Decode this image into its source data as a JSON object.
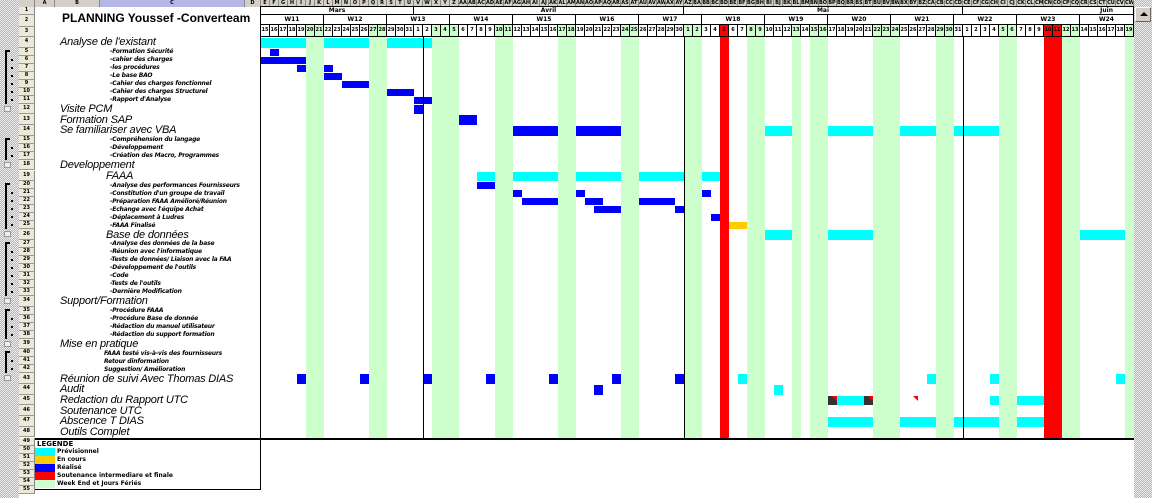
{
  "title": "PLANNING Youssef -Converteam",
  "column_letters": "A B C D E F G H I J K L M N O P Q R S T U V W X Y Z AA AB AC AD AE AF AG AH AI AJ AK AL AM AN AO AP AQ AR AS AT AU AV AW AX AY AZ BA BB BC BD BE BF BG BH BI BJ BK BL BM BN BO BP BQ BR BS BT BU BV BW BX BY BZ CA CB CC CD CE CF CG CH CI CJ CK CL CM CN CO CP CQ CR CS CT CU CV CW",
  "selected_column": "C",
  "timeline": {
    "months": [
      {
        "label": "Mars",
        "first": 15,
        "last": 31
      },
      {
        "label": "Avril",
        "first": 1,
        "last": 30
      },
      {
        "label": "Mai",
        "first": 1,
        "last": 31
      },
      {
        "label": "Juin",
        "first": 1,
        "last": 19
      }
    ],
    "weeks": [
      "W11",
      "W12",
      "W13",
      "W14",
      "W15",
      "W16",
      "W17",
      "W18",
      "W19",
      "W20",
      "W21",
      "W22",
      "W23",
      "W24"
    ],
    "non_working_days": [
      "20 Mars",
      "21 Mars",
      "27 Mars",
      "28 Mars",
      "3 Avril",
      "4 Avril",
      "5 Avril",
      "10 Avril",
      "11 Avril",
      "17 Avril",
      "18 Avril",
      "24 Avril",
      "25 Avril",
      "1 Mai",
      "2 Mai",
      "8 Mai",
      "9 Mai",
      "13 Mai",
      "15 Mai",
      "16 Mai",
      "22 Mai",
      "23 Mai",
      "24 Mai",
      "29 Mai",
      "30 Mai",
      "5 Juin",
      "6 Juin",
      "12 Juin",
      "13 Juin",
      "19 Juin"
    ],
    "defense_days": [
      "5 Mai",
      "10 Juin",
      "11 Juin"
    ]
  },
  "rows": [
    {
      "num": 4,
      "label": "Analyse de l'existant",
      "level": "h1"
    },
    {
      "num": 5,
      "label": "-Formation Sécurité",
      "level": "sub"
    },
    {
      "num": 6,
      "label": "-cahier des charges",
      "level": "sub"
    },
    {
      "num": 7,
      "label": "-les procédures",
      "level": "sub"
    },
    {
      "num": 8,
      "label": "-Le base BAO",
      "level": "sub"
    },
    {
      "num": 9,
      "label": "-Cahier des charges fonctionnel",
      "level": "sub"
    },
    {
      "num": 10,
      "label": "-Cahier des charges Structurel",
      "level": "sub"
    },
    {
      "num": 11,
      "label": "-Rapport d'Analyse",
      "level": "sub"
    },
    {
      "num": 12,
      "label": "Visite PCM",
      "level": "h1"
    },
    {
      "num": 13,
      "label": "Formation SAP",
      "level": "h1"
    },
    {
      "num": 14,
      "label": "Se familiariser avec VBA",
      "level": "h1"
    },
    {
      "num": 15,
      "label": "-Compréhension du langage",
      "level": "sub"
    },
    {
      "num": 16,
      "label": "-Développement",
      "level": "sub"
    },
    {
      "num": 17,
      "label": "-Création des Macro, Programmes",
      "level": "sub"
    },
    {
      "num": 18,
      "label": "Developpement",
      "level": "h1"
    },
    {
      "num": 19,
      "label": "FAAA",
      "level": "h2"
    },
    {
      "num": 20,
      "label": "-Analyse des performances Fournisseurs",
      "level": "sub"
    },
    {
      "num": 21,
      "label": "-Constitution d'un groupe de travail",
      "level": "sub"
    },
    {
      "num": 22,
      "label": "-Préparation FAAA Amélioré/Réunion",
      "level": "sub"
    },
    {
      "num": 23,
      "label": "-Echange avec l'équipe Achat",
      "level": "sub"
    },
    {
      "num": 24,
      "label": "-Déplacement à Ludres",
      "level": "sub"
    },
    {
      "num": 25,
      "label": "-FAAA Finalisé",
      "level": "sub"
    },
    {
      "num": 26,
      "label": "Base de données",
      "level": "h2"
    },
    {
      "num": 27,
      "label": "-Analyse des données de la base",
      "level": "sub"
    },
    {
      "num": 28,
      "label": "-Réunion avec l'informatique",
      "level": "sub"
    },
    {
      "num": 29,
      "label": "-Tests de données/ Liaison avec la FAA",
      "level": "sub"
    },
    {
      "num": 30,
      "label": "-Développement de l'outils",
      "level": "sub"
    },
    {
      "num": 31,
      "label": "-Code",
      "level": "sub"
    },
    {
      "num": 32,
      "label": "-Tests de l'outils",
      "level": "sub"
    },
    {
      "num": 33,
      "label": "-Dernière Modification",
      "level": "sub"
    },
    {
      "num": 34,
      "label": "Support/Formation",
      "level": "h1"
    },
    {
      "num": 35,
      "label": "-Procédure FAAA",
      "level": "sub"
    },
    {
      "num": 36,
      "label": "-Procédure Base de donnée",
      "level": "sub"
    },
    {
      "num": 37,
      "label": "-Rédaction du manuel utilisateur",
      "level": "sub"
    },
    {
      "num": 38,
      "label": "-Rédaction du support formation",
      "level": "sub"
    },
    {
      "num": 39,
      "label": "Mise en pratique",
      "level": "h1"
    },
    {
      "num": 40,
      "label": "FAAA testé vis-à-vis des fournisseurs",
      "level": "sub2"
    },
    {
      "num": 41,
      "label": "Retour dinformation",
      "level": "sub2"
    },
    {
      "num": 42,
      "label": "Suggestion/ Amélioration",
      "level": "sub2"
    },
    {
      "num": 43,
      "label": "Réunion de suivi Avec Thomas DIAS",
      "level": "h1"
    },
    {
      "num": 44,
      "label": "Audit",
      "level": "h1"
    },
    {
      "num": 45,
      "label": "Redaction du Rapport UTC",
      "level": "h1"
    },
    {
      "num": 46,
      "label": "Soutenance UTC",
      "level": "h1"
    },
    {
      "num": 47,
      "label": "Abscence T DIAS",
      "level": "h1"
    },
    {
      "num": 48,
      "label": "Outils Complet",
      "level": "h1"
    }
  ],
  "bars": [
    {
      "row": 4,
      "status": "planned",
      "from": "15 Mars",
      "to": "2 Avril"
    },
    {
      "row": 5,
      "status": "done",
      "from": "16 Mars",
      "to": "16 Mars"
    },
    {
      "row": 6,
      "status": "done",
      "from": "15 Mars",
      "to": "19 Mars"
    },
    {
      "row": 7,
      "status": "done",
      "from": "19 Mars",
      "to": "19 Mars"
    },
    {
      "row": 7,
      "status": "done",
      "from": "22 Mars",
      "to": "22 Mars"
    },
    {
      "row": 8,
      "status": "done",
      "from": "22 Mars",
      "to": "23 Mars"
    },
    {
      "row": 9,
      "status": "done",
      "from": "24 Mars",
      "to": "26 Mars"
    },
    {
      "row": 10,
      "status": "done",
      "from": "29 Mars",
      "to": "31 Mars"
    },
    {
      "row": 11,
      "status": "done",
      "from": "1 Avril",
      "to": "2 Avril"
    },
    {
      "row": 12,
      "status": "done",
      "from": "1 Avril",
      "to": "1 Avril"
    },
    {
      "row": 13,
      "status": "done",
      "from": "6 Avril",
      "to": "7 Avril"
    },
    {
      "row": 14,
      "status": "done",
      "from": "12 Avril",
      "to": "23 Avril"
    },
    {
      "row": 14,
      "status": "planned",
      "from": "10 Mai",
      "to": "12 Mai"
    },
    {
      "row": 14,
      "status": "planned",
      "from": "17 Mai",
      "to": "4 Juin"
    },
    {
      "row": 19,
      "status": "planned",
      "from": "8 Avril",
      "to": "4 Mai"
    },
    {
      "row": 20,
      "status": "done",
      "from": "8 Avril",
      "to": "9 Avril"
    },
    {
      "row": 21,
      "status": "done",
      "from": "12 Avril",
      "to": "12 Avril"
    },
    {
      "row": 21,
      "status": "done",
      "from": "19 Avril",
      "to": "19 Avril"
    },
    {
      "row": 21,
      "status": "done",
      "from": "3 Mai",
      "to": "3 Mai"
    },
    {
      "row": 22,
      "status": "done",
      "from": "13 Avril",
      "to": "16 Avril"
    },
    {
      "row": 22,
      "status": "done",
      "from": "20 Avril",
      "to": "21 Avril"
    },
    {
      "row": 22,
      "status": "done",
      "from": "26 Avril",
      "to": "29 Avril"
    },
    {
      "row": 23,
      "status": "done",
      "from": "21 Avril",
      "to": "23 Avril"
    },
    {
      "row": 23,
      "status": "done",
      "from": "30 Avril",
      "to": "30 Avril"
    },
    {
      "row": 24,
      "status": "done",
      "from": "4 Mai",
      "to": "4 Mai"
    },
    {
      "row": 25,
      "status": "in_progress",
      "from": "6 Mai",
      "to": "7 Mai"
    },
    {
      "row": 26,
      "status": "planned",
      "from": "10 Mai",
      "to": "12 Mai"
    },
    {
      "row": 26,
      "status": "planned",
      "from": "17 Mai",
      "to": "21 Mai"
    },
    {
      "row": 26,
      "status": "planned",
      "from": "14 Juin",
      "to": "18 Juin"
    },
    {
      "row": 43,
      "status": "done",
      "from": "19 Mars",
      "to": "19 Mars"
    },
    {
      "row": 43,
      "status": "done",
      "from": "26 Mars",
      "to": "26 Mars"
    },
    {
      "row": 43,
      "status": "done",
      "from": "2 Avril",
      "to": "2 Avril"
    },
    {
      "row": 43,
      "status": "done",
      "from": "9 Avril",
      "to": "9 Avril"
    },
    {
      "row": 43,
      "status": "done",
      "from": "16 Avril",
      "to": "16 Avril"
    },
    {
      "row": 43,
      "status": "done",
      "from": "23 Avril",
      "to": "23 Avril"
    },
    {
      "row": 43,
      "status": "done",
      "from": "30 Avril",
      "to": "30 Avril"
    },
    {
      "row": 43,
      "status": "planned",
      "from": "7 Mai",
      "to": "7 Mai"
    },
    {
      "row": 43,
      "status": "planned",
      "from": "28 Mai",
      "to": "28 Mai"
    },
    {
      "row": 43,
      "status": "planned",
      "from": "4 Juin",
      "to": "4 Juin"
    },
    {
      "row": 43,
      "status": "planned",
      "from": "18 Juin",
      "to": "18 Juin"
    },
    {
      "row": 44,
      "status": "done",
      "from": "21 Avril",
      "to": "21 Avril"
    },
    {
      "row": 44,
      "status": "planned",
      "from": "11 Mai",
      "to": "11 Mai"
    },
    {
      "row": 45,
      "status": "marked",
      "from": "17 Mai",
      "to": "17 Mai"
    },
    {
      "row": 45,
      "status": "planned",
      "from": "18 Mai",
      "to": "20 Mai"
    },
    {
      "row": 45,
      "status": "marked",
      "from": "21 Mai",
      "to": "21 Mai"
    },
    {
      "row": 45,
      "status": "planned",
      "from": "4 Juin",
      "to": "4 Juin"
    },
    {
      "row": 45,
      "status": "planned",
      "from": "7 Juin",
      "to": "9 Juin"
    },
    {
      "row": 47,
      "status": "planned",
      "from": "17 Mai",
      "to": "9 Juin"
    }
  ],
  "comment_markers": [
    {
      "row": 45,
      "day": "17 Mai"
    },
    {
      "row": 45,
      "day": "21 Mai"
    },
    {
      "row": 45,
      "day": "26 Mai"
    }
  ],
  "legend": {
    "title": "LEGENDE",
    "items": [
      {
        "key": "planned",
        "label": "Prévisionnel",
        "color": "#00ffff"
      },
      {
        "key": "in_progress",
        "label": "En cours",
        "color": "#ffcc00"
      },
      {
        "key": "done",
        "label": "Réalisé",
        "color": "#0000ff"
      },
      {
        "key": "defense",
        "label": "Soutenance intermediare et finale",
        "color": "#ff0000"
      },
      {
        "key": "weekend",
        "label": "Week End et Jours Fériés",
        "color": "#ccffcc"
      }
    ]
  },
  "marked_color": "#333333",
  "last_row_number": 55
}
